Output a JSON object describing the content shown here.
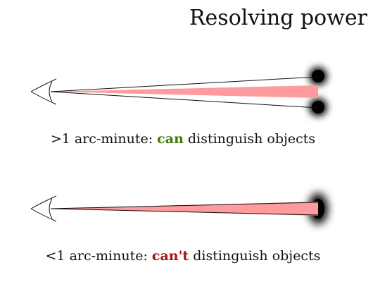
{
  "title": "Resolving power",
  "panels": [
    {
      "prefix": ">1 arc-minute: ",
      "keyword": "can",
      "suffix": " distinguish objects",
      "keyword_color": "#3f7a0a",
      "resolved": true
    },
    {
      "prefix": "<1 arc-minute: ",
      "keyword": "can't",
      "suffix": " distinguish objects",
      "keyword_color": "#a31212",
      "resolved": false
    }
  ],
  "colors": {
    "beam_fill": "#ff9a9e",
    "beam_stroke": "#111111",
    "object": "#000000"
  },
  "icons": [
    "eye-icon",
    "light-cone",
    "object-blob"
  ]
}
